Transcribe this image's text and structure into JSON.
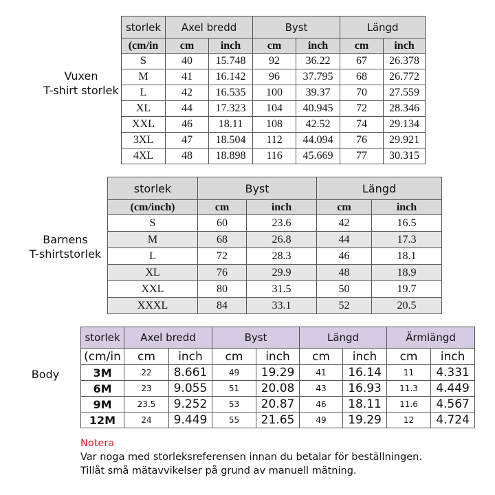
{
  "adult": {
    "label_line1": "Vuxen",
    "label_line2": "T-shirt storlek",
    "header_color": "#d9d9d9",
    "groups": [
      "storlek",
      "Axel bredd",
      "Byst",
      "Längd"
    ],
    "sub": [
      "(cm/in",
      "cm",
      "inch",
      "cm",
      "inch",
      "cm",
      "inch"
    ],
    "rows": [
      [
        "S",
        "40",
        "15.748",
        "92",
        "36.22",
        "67",
        "26.378"
      ],
      [
        "M",
        "41",
        "16.142",
        "96",
        "37.795",
        "68",
        "26.772"
      ],
      [
        "L",
        "42",
        "16.535",
        "100",
        "39.37",
        "70",
        "27.559"
      ],
      [
        "XL",
        "44",
        "17.323",
        "104",
        "40.945",
        "72",
        "28.346"
      ],
      [
        "XXL",
        "46",
        "18.11",
        "108",
        "42.52",
        "74",
        "29.134"
      ],
      [
        "3XL",
        "47",
        "18.504",
        "112",
        "44.094",
        "76",
        "29.921"
      ],
      [
        "4XL",
        "48",
        "18.898",
        "116",
        "45.669",
        "77",
        "30.315"
      ]
    ]
  },
  "kids": {
    "label_line1": "Barnens",
    "label_line2": "T-shirtstorlek",
    "header_color": "#d9d9d9",
    "alt_row_color": "#e6e6e6",
    "groups": [
      "storlek",
      "Byst",
      "Längd"
    ],
    "sub": [
      "(cm/inch)",
      "cm",
      "inch",
      "cm",
      "inch"
    ],
    "rows": [
      [
        "S",
        "60",
        "23.6",
        "42",
        "16.5"
      ],
      [
        "M",
        "68",
        "26.8",
        "44",
        "17.3"
      ],
      [
        "L",
        "72",
        "28.3",
        "46",
        "18.1"
      ],
      [
        "XL",
        "76",
        "29.9",
        "48",
        "18.9"
      ],
      [
        "XXL",
        "80",
        "31.5",
        "50",
        "19.7"
      ],
      [
        "XXXL",
        "84",
        "33.1",
        "52",
        "20.5"
      ]
    ]
  },
  "body": {
    "label": "Body",
    "header_color": "#d5cbe3",
    "groups": [
      "storlek",
      "Axel bredd",
      "Byst",
      "Längd",
      "Ärmlängd"
    ],
    "sub": [
      "(cm/in",
      "cm",
      "inch",
      "cm",
      "inch",
      "cm",
      "inch",
      "cm",
      "inch"
    ],
    "rows": [
      [
        "3M",
        "22",
        "8.661",
        "49",
        "19.29",
        "41",
        "16.14",
        "11",
        "4.331"
      ],
      [
        "6M",
        "23",
        "9.055",
        "51",
        "20.08",
        "43",
        "16.93",
        "11.3",
        "4.449"
      ],
      [
        "9M",
        "23.5",
        "9.252",
        "53",
        "20.87",
        "46",
        "18.11",
        "11.6",
        "4.567"
      ],
      [
        "12M",
        "24",
        "9.449",
        "55",
        "21.65",
        "49",
        "19.29",
        "12",
        "4.724"
      ]
    ]
  },
  "note": {
    "title": "Notera",
    "title_color": "#e8192c",
    "line1": "Var noga med storleksreferensen innan du betalar för beställningen.",
    "line2": "Tillåt små mätavvikelser på grund av manuell mätning."
  }
}
